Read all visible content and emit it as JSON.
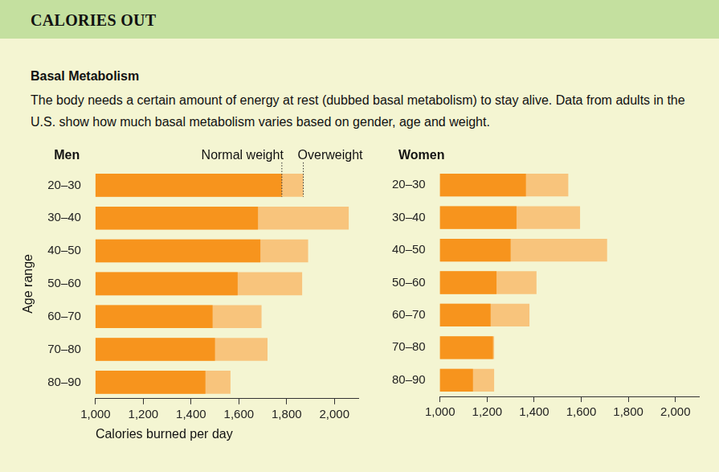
{
  "header": "CALORIES OUT",
  "heading": "Basal Metabolism",
  "description": "The body needs a certain amount of energy at rest (dubbed basal metabolism) to stay alive. Data from adults in the U.S. show how much basal metabolism varies based on gender, age and weight.",
  "chart_data": [
    {
      "type": "bar",
      "orientation": "horizontal",
      "title": "Men",
      "xlabel": "Calories burned per day",
      "ylabel": "Age range",
      "categories": [
        "20–30",
        "30–40",
        "40–50",
        "50–60",
        "60–70",
        "70–80",
        "80–90"
      ],
      "series": [
        {
          "name": "Normal weight",
          "color": "#f7941d",
          "values": [
            1780,
            1680,
            1690,
            1595,
            1490,
            1500,
            1460
          ]
        },
        {
          "name": "Overweight",
          "color": "#f8c47c",
          "values": [
            1870,
            2060,
            1890,
            1865,
            1695,
            1720,
            1565
          ]
        }
      ],
      "xlim": [
        1000,
        2100
      ],
      "xticks": [
        {
          "value": 1000,
          "label": "1,000"
        },
        {
          "value": 1200,
          "label": "1,200"
        },
        {
          "value": 1400,
          "label": "1,400"
        },
        {
          "value": 1600,
          "label": "1,600"
        },
        {
          "value": 1800,
          "label": "1,800"
        },
        {
          "value": 2000,
          "label": "2,000"
        }
      ],
      "grid": false
    },
    {
      "type": "bar",
      "orientation": "horizontal",
      "title": "Women",
      "categories": [
        "20–30",
        "30–40",
        "40–50",
        "50–60",
        "60–70",
        "70–80",
        "80–90"
      ],
      "series": [
        {
          "name": "Normal weight",
          "color": "#f7941d",
          "values": [
            1365,
            1325,
            1300,
            1240,
            1215,
            1225,
            1140
          ]
        },
        {
          "name": "Overweight",
          "color": "#f8c47c",
          "values": [
            1545,
            1595,
            1710,
            1410,
            1380,
            1230,
            1230
          ]
        }
      ],
      "xlim": [
        1000,
        2100
      ],
      "xticks": [
        {
          "value": 1000,
          "label": "1,000"
        },
        {
          "value": 1200,
          "label": "1,200"
        },
        {
          "value": 1400,
          "label": "1,400"
        },
        {
          "value": 1600,
          "label": "1,600"
        },
        {
          "value": 1800,
          "label": "1,800"
        },
        {
          "value": 2000,
          "label": "2,000"
        }
      ],
      "grid": false
    }
  ]
}
